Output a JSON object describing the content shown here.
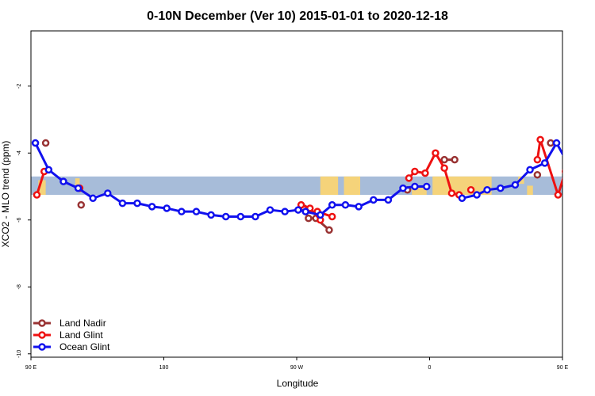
{
  "chart_data": {
    "type": "line",
    "title": "0-10N December (Ver 10)   2015-01-01 to 2020-12-18",
    "xlabel": "Longitude",
    "ylabel": "XCO2 - MLO trend (ppm)",
    "xlim": [
      -90,
      270
    ],
    "ylim": [
      -10.1,
      -0.35
    ],
    "x_ticks": [
      {
        "value": -90,
        "label": "90 E"
      },
      {
        "value": 0,
        "label": "180"
      },
      {
        "value": 90,
        "label": "90 W"
      },
      {
        "value": 180,
        "label": "0"
      },
      {
        "value": 270,
        "label": "90 E"
      }
    ],
    "y_ticks": [
      {
        "value": -2,
        "label": "-2"
      },
      {
        "value": -4,
        "label": "-4"
      },
      {
        "value": -6,
        "label": "-6"
      },
      {
        "value": -8,
        "label": "-8"
      },
      {
        "value": -10,
        "label": "-10"
      }
    ],
    "grid": false,
    "legend_position": "bottom-left",
    "map_band": {
      "y_top": -4.7,
      "y_bottom": -5.25,
      "ocean_color": "#a7bcd9",
      "land_color": "#f5d37a"
    },
    "series": [
      {
        "name": "Land Nadir",
        "color": "#993333",
        "segments": [
          [
            {
              "x": -80,
              "y": -3.7
            }
          ],
          [
            {
              "x": -56,
              "y": -5.55
            }
          ],
          [
            {
              "x": 95,
              "y": -5.65
            },
            {
              "x": 98,
              "y": -5.95
            },
            {
              "x": 103,
              "y": -5.95
            },
            {
              "x": 112,
              "y": -6.3
            }
          ],
          [
            {
              "x": 165,
              "y": -5.1
            }
          ],
          [
            {
              "x": 190,
              "y": -4.2
            },
            {
              "x": 197,
              "y": -4.2
            }
          ],
          [
            {
              "x": 253,
              "y": -4.65
            }
          ],
          [
            {
              "x": 262,
              "y": -3.7
            }
          ],
          [
            {
              "x": 282,
              "y": -5.55
            }
          ]
        ]
      },
      {
        "name": "Land Glint",
        "color": "#ee1111",
        "segments": [
          [
            {
              "x": -86,
              "y": -5.25
            },
            {
              "x": -81,
              "y": -4.55
            }
          ],
          [
            {
              "x": -57,
              "y": -5.05
            }
          ],
          [
            {
              "x": 93,
              "y": -5.55
            },
            {
              "x": 99,
              "y": -5.65
            },
            {
              "x": 106,
              "y": -6.0
            }
          ],
          [
            {
              "x": 104,
              "y": -5.75
            },
            {
              "x": 114,
              "y": -5.9
            }
          ],
          [
            {
              "x": 166,
              "y": -4.75
            },
            {
              "x": 170,
              "y": -4.55
            },
            {
              "x": 177,
              "y": -4.6
            },
            {
              "x": 184,
              "y": -4.0
            },
            {
              "x": 190,
              "y": -4.45
            },
            {
              "x": 195,
              "y": -5.2
            },
            {
              "x": 200,
              "y": -5.25
            }
          ],
          [
            {
              "x": 208,
              "y": -5.1
            }
          ],
          [
            {
              "x": 253,
              "y": -4.2
            },
            {
              "x": 255,
              "y": -3.6
            },
            {
              "x": 267,
              "y": -5.25
            },
            {
              "x": 272,
              "y": -4.55
            }
          ],
          [
            {
              "x": 279,
              "y": -5.05
            }
          ]
        ]
      },
      {
        "name": "Ocean Glint",
        "color": "#1111ee",
        "segments": [
          [
            {
              "x": -87,
              "y": -3.7
            },
            {
              "x": -78,
              "y": -4.5
            },
            {
              "x": -68,
              "y": -4.85
            },
            {
              "x": -58,
              "y": -5.05
            },
            {
              "x": -48,
              "y": -5.35
            },
            {
              "x": -38,
              "y": -5.2
            },
            {
              "x": -28,
              "y": -5.5
            },
            {
              "x": -18,
              "y": -5.5
            },
            {
              "x": -8,
              "y": -5.6
            },
            {
              "x": 2,
              "y": -5.65
            },
            {
              "x": 12,
              "y": -5.75
            },
            {
              "x": 22,
              "y": -5.75
            },
            {
              "x": 32,
              "y": -5.85
            },
            {
              "x": 42,
              "y": -5.9
            },
            {
              "x": 52,
              "y": -5.9
            },
            {
              "x": 62,
              "y": -5.9
            },
            {
              "x": 72,
              "y": -5.7
            },
            {
              "x": 82,
              "y": -5.75
            },
            {
              "x": 91,
              "y": -5.7
            },
            {
              "x": 96,
              "y": -5.75
            },
            {
              "x": 106,
              "y": -5.85
            },
            {
              "x": 114,
              "y": -5.55
            },
            {
              "x": 123,
              "y": -5.55
            },
            {
              "x": 132,
              "y": -5.6
            },
            {
              "x": 142,
              "y": -5.4
            },
            {
              "x": 152,
              "y": -5.4
            },
            {
              "x": 162,
              "y": -5.05
            },
            {
              "x": 170,
              "y": -5.0
            },
            {
              "x": 178,
              "y": -5.0
            }
          ],
          [
            {
              "x": 202,
              "y": -5.35
            },
            {
              "x": 212,
              "y": -5.25
            },
            {
              "x": 219,
              "y": -5.1
            },
            {
              "x": 228,
              "y": -5.05
            },
            {
              "x": 238,
              "y": -4.95
            },
            {
              "x": 248,
              "y": -4.5
            },
            {
              "x": 258,
              "y": -4.3
            },
            {
              "x": 266,
              "y": -3.7
            },
            {
              "x": 276,
              "y": -4.5
            },
            {
              "x": 286,
              "y": -4.9
            },
            {
              "x": 296,
              "y": -5.1
            },
            {
              "x": 306,
              "y": -5.35
            },
            {
              "x": 316,
              "y": -5.25
            },
            {
              "x": 326,
              "y": -5.55
            },
            {
              "x": 336,
              "y": -5.55
            },
            {
              "x": 346,
              "y": -5.6
            }
          ]
        ]
      }
    ]
  }
}
